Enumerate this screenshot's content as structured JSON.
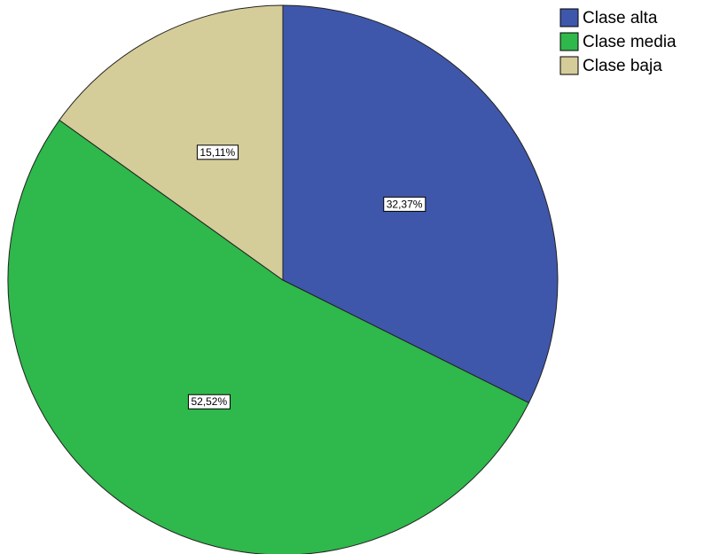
{
  "chart_data": {
    "type": "pie",
    "categories": [
      "Clase alta",
      "Clase media",
      "Clase baja"
    ],
    "values": [
      32.37,
      52.52,
      15.11
    ],
    "value_labels": [
      "32,37%",
      "52,52%",
      "15,11%"
    ],
    "colors": [
      "#3f57aa",
      "#2fb84b",
      "#d5cd99"
    ],
    "legend": "upper right"
  }
}
